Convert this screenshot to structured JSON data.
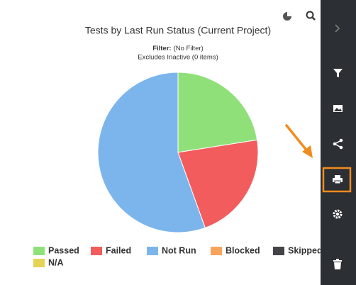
{
  "chart_data": {
    "type": "pie",
    "title": "Tests by Last Run Status (Current Project)",
    "filter_label": "Filter:",
    "filter_value": "(No Filter)",
    "subtitle": "Excludes Inactive (0 items)",
    "categories": [
      "Passed",
      "Failed",
      "Not Run",
      "Blocked",
      "Skipped",
      "N/A"
    ],
    "values": [
      22.5,
      22,
      55.5,
      0,
      0,
      0
    ],
    "colors": [
      "#90e07a",
      "#f25c5c",
      "#7cb5ec",
      "#f7a35c",
      "#434348",
      "#e4d354"
    ]
  }
}
